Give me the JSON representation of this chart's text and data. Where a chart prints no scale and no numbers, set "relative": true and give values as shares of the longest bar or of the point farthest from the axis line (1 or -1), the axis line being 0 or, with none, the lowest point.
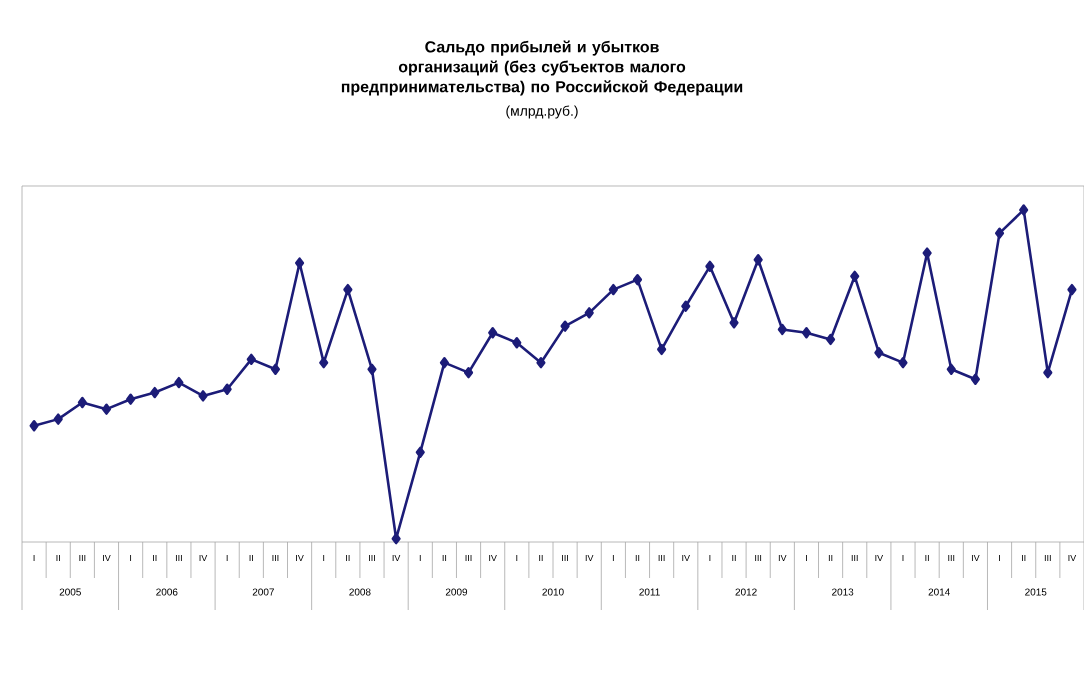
{
  "chart_data": {
    "type": "line",
    "title": "Сальдо прибылей и убытков организаций (без субъектов малого предпринимательства) по Российской Федерации",
    "subtitle": "(млрд.руб.)",
    "relative": true,
    "marker": "diamond",
    "line_style": "solid",
    "categories": [
      "I",
      "II",
      "III",
      "IV",
      "I",
      "II",
      "III",
      "IV",
      "I",
      "II",
      "III",
      "IV",
      "I",
      "II",
      "III",
      "IV",
      "I",
      "II",
      "III",
      "IV",
      "I",
      "II",
      "III",
      "IV",
      "I",
      "II",
      "III",
      "IV",
      "I",
      "II",
      "III",
      "IV",
      "I",
      "II",
      "III",
      "IV",
      "I",
      "II",
      "III",
      "IV",
      "I",
      "II",
      "III",
      "IV"
    ],
    "annotations": [
      "2005",
      "2006",
      "2007",
      "2008",
      "2009",
      "2010",
      "2011",
      "2012",
      "2013",
      "2014",
      "2015"
    ],
    "series": [
      {
        "color": "#1c1c78",
        "values": [
          0.35,
          0.37,
          0.42,
          0.4,
          0.43,
          0.45,
          0.48,
          0.44,
          0.46,
          0.55,
          0.52,
          0.84,
          0.54,
          0.76,
          0.52,
          0.01,
          0.27,
          0.54,
          0.51,
          0.63,
          0.6,
          0.54,
          0.65,
          0.69,
          0.76,
          0.79,
          0.58,
          0.71,
          0.83,
          0.66,
          0.85,
          0.64,
          0.63,
          0.61,
          0.8,
          0.57,
          0.54,
          0.87,
          0.52,
          0.49,
          0.93,
          1.0,
          0.51,
          0.76
        ]
      }
    ]
  }
}
